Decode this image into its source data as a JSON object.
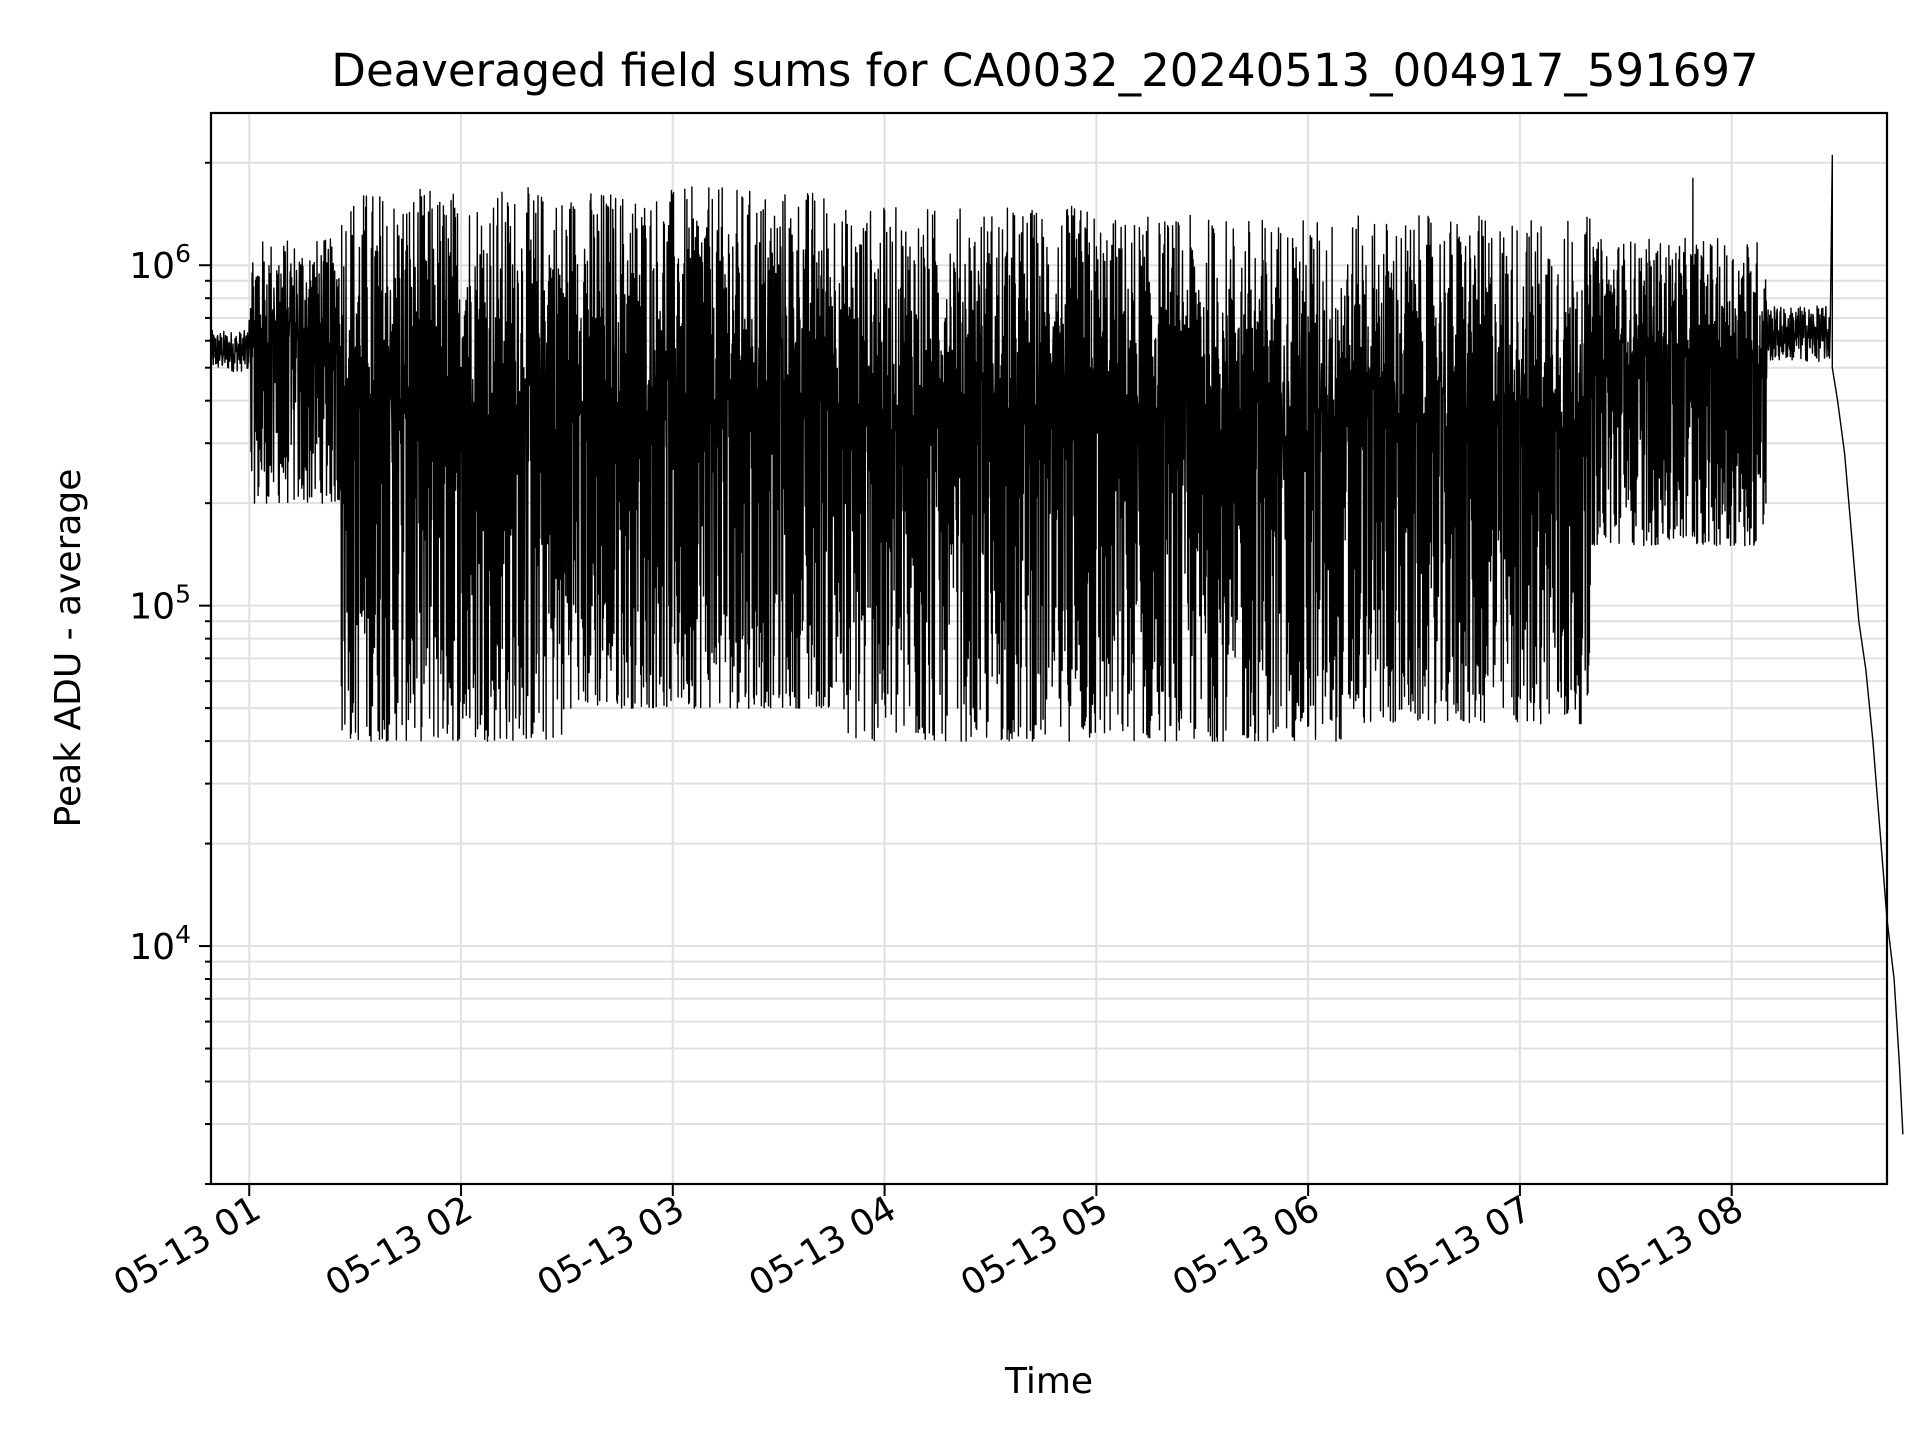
{
  "chart_data": {
    "type": "line",
    "title": "Deaveraged field sums for CA0032_20240513_004917_591697",
    "xlabel": "Time",
    "ylabel": "Peak ADU - average",
    "yscale": "log",
    "grid": true,
    "line_color": "#000000",
    "xlim": [
      "05-13 00:49:10",
      "05-13 08:44:00"
    ],
    "ylim": [
      2000,
      2800000
    ],
    "x_ticks": [
      "05-13 01",
      "05-13 02",
      "05-13 03",
      "05-13 04",
      "05-13 05",
      "05-13 06",
      "05-13 07",
      "05-13 08"
    ],
    "y_ticks": [
      {
        "base": "10",
        "exp": "4",
        "value": 10000
      },
      {
        "base": "10",
        "exp": "5",
        "value": 100000
      },
      {
        "base": "10",
        "exp": "6",
        "value": 1000000
      }
    ],
    "series": [
      {
        "x_unit": "minutes after 05-13 00:00",
        "segments": [
          {
            "start": 49.2,
            "end": 60,
            "min": 400000,
            "max": 700000
          },
          {
            "start": 60,
            "end": 86,
            "min": 200000,
            "max": 1200000
          },
          {
            "start": 86,
            "end": 150,
            "min": 40000,
            "max": 1700000
          },
          {
            "start": 150,
            "end": 228,
            "min": 50000,
            "max": 1700000
          },
          {
            "start": 228,
            "end": 300,
            "min": 40000,
            "max": 1500000
          },
          {
            "start": 300,
            "end": 372,
            "min": 40000,
            "max": 1400000
          },
          {
            "start": 372,
            "end": 440,
            "min": 45000,
            "max": 1400000
          },
          {
            "start": 440,
            "end": 490,
            "min": 150000,
            "max": 1200000
          },
          {
            "start": 490,
            "end": 508,
            "min": 400000,
            "max": 850000
          }
        ],
        "spikes": [
          {
            "x": 469,
            "y": 1800000
          },
          {
            "x": 508.5,
            "y": 2100000
          }
        ],
        "tail": [
          [
            508.5,
            500000
          ],
          [
            510,
            400000
          ],
          [
            512,
            280000
          ],
          [
            514,
            160000
          ],
          [
            516,
            90000
          ],
          [
            518,
            65000
          ],
          [
            520,
            40000
          ],
          [
            522,
            22000
          ],
          [
            524,
            12000
          ],
          [
            526,
            8000
          ],
          [
            527.5,
            4500
          ],
          [
            528.5,
            2800
          ]
        ]
      }
    ]
  }
}
